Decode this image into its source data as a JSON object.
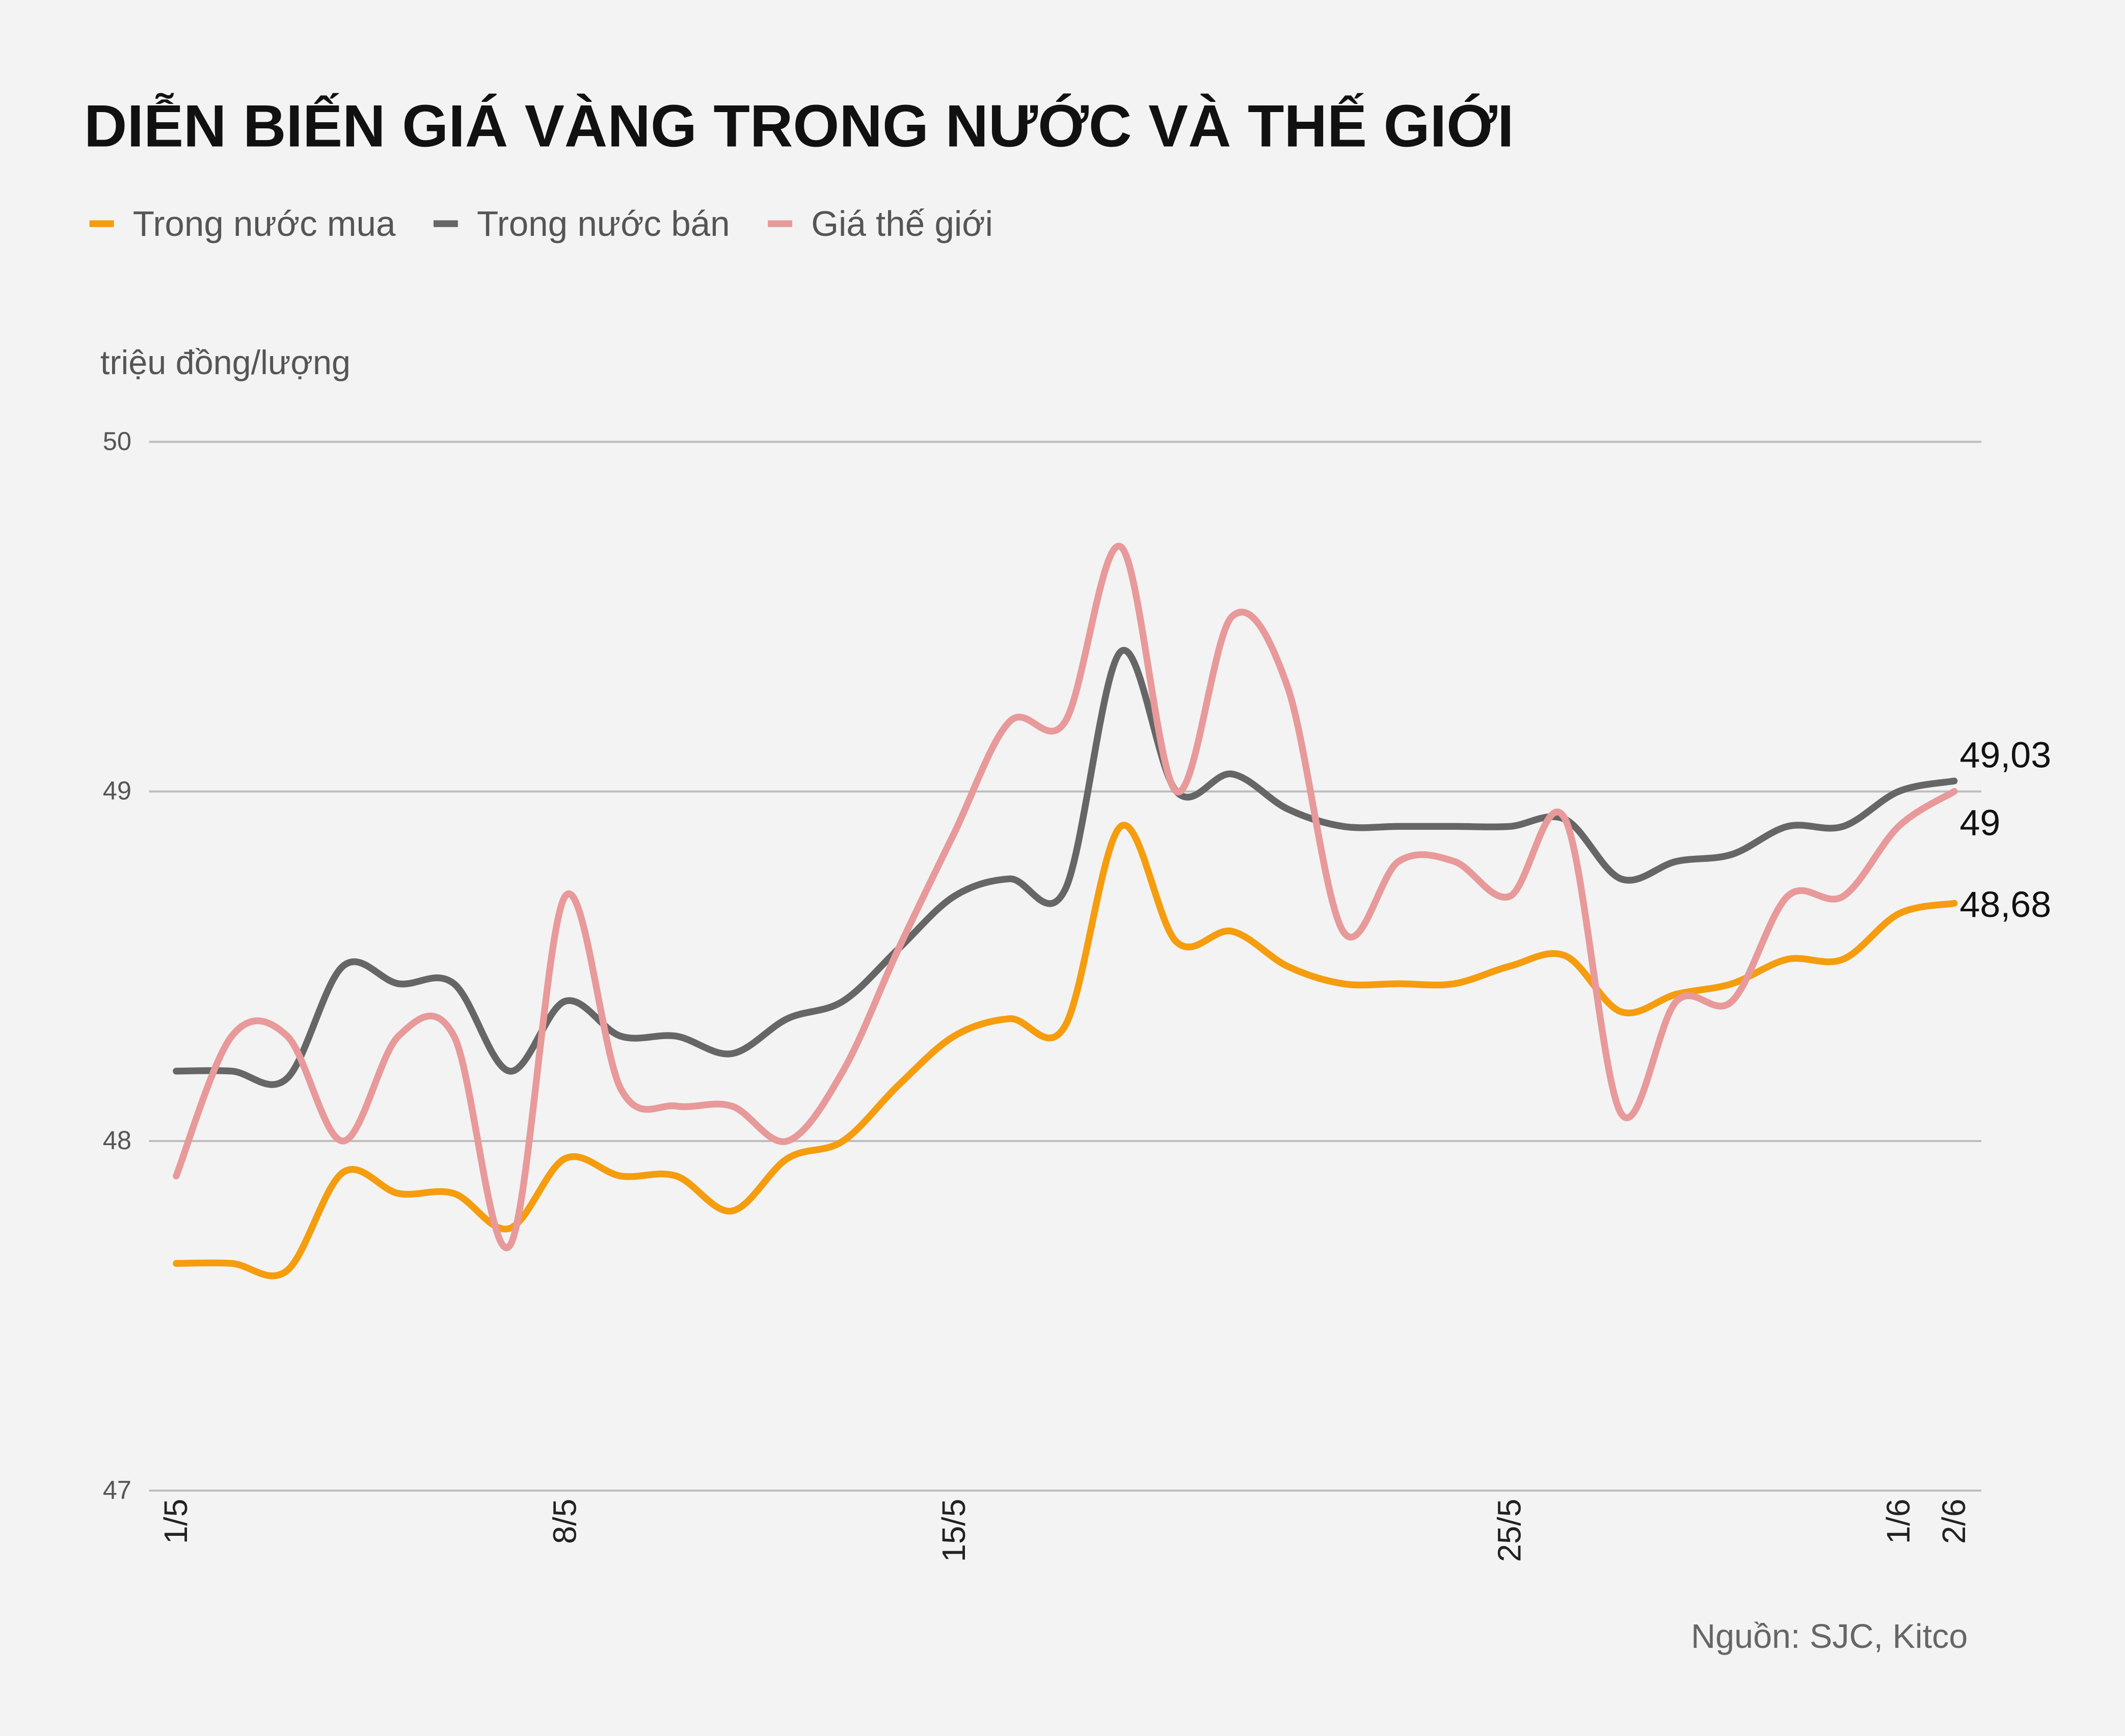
{
  "chart_data": {
    "type": "line",
    "title": "DIỄN BIẾN GIÁ VÀNG TRONG NƯỚC VÀ THẾ GIỚI",
    "y_label": "triệu đồng/lượng",
    "source": "Nguồn: SJC, Kitco",
    "categories": [
      "1/5",
      null,
      null,
      null,
      null,
      null,
      null,
      "8/5",
      null,
      null,
      null,
      null,
      null,
      null,
      "15/5",
      null,
      null,
      null,
      null,
      null,
      null,
      null,
      null,
      null,
      "25/5",
      null,
      null,
      null,
      null,
      null,
      null,
      "1/6",
      "2/6"
    ],
    "ylim": [
      47,
      50
    ],
    "yticks": [
      47,
      48,
      49,
      50
    ],
    "grid": true,
    "smooth": true,
    "series": [
      {
        "name": "Trong nước mua",
        "color": "#f59d0e",
        "values": [
          47.65,
          47.65,
          47.63,
          47.91,
          47.85,
          47.85,
          47.75,
          47.95,
          47.9,
          47.9,
          47.8,
          47.95,
          48.0,
          48.16,
          48.3,
          48.35,
          48.33,
          48.9,
          48.57,
          48.6,
          48.5,
          48.45,
          48.45,
          48.45,
          48.5,
          48.53,
          48.37,
          48.42,
          48.45,
          48.52,
          48.52,
          48.65,
          48.68
        ],
        "value_labels": [
          null,
          null,
          null,
          null,
          null,
          null,
          null,
          null,
          null,
          null,
          null,
          null,
          null,
          null,
          null,
          null,
          null,
          null,
          null,
          null,
          null,
          null,
          null,
          null,
          null,
          null,
          null,
          null,
          null,
          null,
          null,
          null,
          "48,68"
        ]
      },
      {
        "name": "Trong nước bán",
        "color": "#666666",
        "values": [
          48.2,
          48.2,
          48.18,
          48.5,
          48.45,
          48.45,
          48.2,
          48.4,
          48.3,
          48.3,
          48.25,
          48.35,
          48.4,
          48.55,
          48.7,
          48.75,
          48.72,
          49.4,
          49.0,
          49.05,
          48.95,
          48.9,
          48.9,
          48.9,
          48.9,
          48.92,
          48.75,
          48.8,
          48.82,
          48.9,
          48.9,
          49.0,
          49.03
        ],
        "value_labels": [
          null,
          null,
          null,
          null,
          null,
          null,
          null,
          null,
          null,
          null,
          null,
          null,
          null,
          null,
          null,
          null,
          null,
          null,
          null,
          null,
          null,
          null,
          null,
          null,
          null,
          null,
          null,
          null,
          null,
          null,
          null,
          null,
          "49,03"
        ]
      },
      {
        "name": "Giá thế giới",
        "color": "#e8999a",
        "values": [
          47.9,
          48.3,
          48.3,
          48.0,
          48.3,
          48.3,
          47.7,
          48.7,
          48.15,
          48.1,
          48.1,
          48.0,
          48.2,
          48.55,
          48.88,
          49.2,
          49.2,
          49.7,
          49.0,
          49.5,
          49.3,
          48.6,
          48.8,
          48.8,
          48.7,
          48.92,
          48.08,
          48.4,
          48.4,
          48.7,
          48.7,
          48.9,
          49.0
        ]
      }
    ]
  }
}
